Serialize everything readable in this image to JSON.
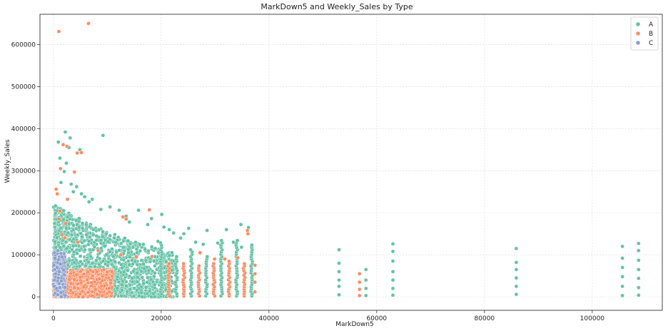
{
  "chart_data": {
    "type": "scatter",
    "title": "MarkDown5 and Weekly_Sales by Type",
    "xlabel": "MarkDown5",
    "ylabel": "Weekly_Sales",
    "xlim": [
      -2500,
      113000
    ],
    "ylim": [
      -32000,
      672000
    ],
    "xticks": [
      0,
      20000,
      40000,
      60000,
      80000,
      100000
    ],
    "xtick_labels": [
      "0",
      "20000",
      "40000",
      "60000",
      "80000",
      "100000"
    ],
    "yticks": [
      0,
      100000,
      200000,
      300000,
      400000,
      500000,
      600000
    ],
    "ytick_labels": [
      "0",
      "100000",
      "200000",
      "300000",
      "400000",
      "500000",
      "600000"
    ],
    "grid": true,
    "legend": {
      "placement": "top-right",
      "entries": [
        "A",
        "B",
        "C"
      ]
    },
    "colors": {
      "A": "#66c2a5",
      "B": "#fc8d62",
      "C": "#8da0cb"
    },
    "series": [
      {
        "name": "A",
        "color": "#66c2a5",
        "points": [
          [
            900,
            368000
          ],
          [
            2200,
            392000
          ],
          [
            3100,
            378000
          ],
          [
            9200,
            384000
          ],
          [
            2900,
            355000
          ],
          [
            4900,
            350000
          ],
          [
            1200,
            330000
          ],
          [
            2400,
            318000
          ],
          [
            2000,
            298000
          ],
          [
            1400,
            272000
          ],
          [
            3300,
            268000
          ],
          [
            4300,
            262000
          ],
          [
            3700,
            250000
          ],
          [
            5200,
            245000
          ],
          [
            5800,
            238000
          ],
          [
            7200,
            232000
          ],
          [
            6600,
            226000
          ],
          [
            10500,
            214000
          ],
          [
            8800,
            208000
          ],
          [
            12200,
            206000
          ],
          [
            15800,
            206000
          ],
          [
            20100,
            196000
          ],
          [
            18200,
            186000
          ],
          [
            13500,
            192000
          ],
          [
            14100,
            178000
          ],
          [
            17500,
            172000
          ],
          [
            20500,
            166000
          ],
          [
            21500,
            160000
          ],
          [
            25100,
            163000
          ],
          [
            22300,
            152000
          ],
          [
            24200,
            150000
          ],
          [
            28500,
            158000
          ],
          [
            32100,
            160000
          ],
          [
            34800,
            172000
          ],
          [
            36200,
            165000
          ],
          [
            23600,
            140000
          ],
          [
            26400,
            130000
          ],
          [
            27800,
            125000
          ],
          [
            30500,
            128000
          ],
          [
            33400,
            130000
          ],
          [
            34900,
            118000
          ],
          [
            18900,
            115000
          ],
          [
            16700,
            125000
          ],
          [
            19400,
            132000
          ],
          [
            11300,
            140000
          ],
          [
            9800,
            150000
          ],
          [
            7400,
            160000
          ],
          [
            6100,
            172000
          ],
          [
            4200,
            182000
          ],
          [
            2600,
            190000
          ],
          [
            1900,
            205000
          ],
          [
            53000,
            112000
          ],
          [
            53000,
            80000
          ],
          [
            53000,
            60000
          ],
          [
            53000,
            40000
          ],
          [
            53000,
            25000
          ],
          [
            53000,
            5000
          ],
          [
            58000,
            65000
          ],
          [
            58000,
            40000
          ],
          [
            58000,
            20000
          ],
          [
            58000,
            3000
          ],
          [
            63000,
            126000
          ],
          [
            63000,
            108000
          ],
          [
            63000,
            85000
          ],
          [
            63000,
            60000
          ],
          [
            63000,
            40000
          ],
          [
            63000,
            20000
          ],
          [
            63000,
            4000
          ],
          [
            85900,
            115000
          ],
          [
            85900,
            82000
          ],
          [
            85900,
            65000
          ],
          [
            85900,
            45000
          ],
          [
            85900,
            25000
          ],
          [
            85900,
            6000
          ],
          [
            105600,
            120000
          ],
          [
            105600,
            92000
          ],
          [
            105600,
            70000
          ],
          [
            105600,
            48000
          ],
          [
            105600,
            25000
          ],
          [
            105600,
            3000
          ],
          [
            108600,
            127000
          ],
          [
            108600,
            110000
          ],
          [
            108600,
            87000
          ],
          [
            108600,
            65000
          ],
          [
            108600,
            44000
          ],
          [
            108600,
            22000
          ],
          [
            108600,
            4000
          ]
        ]
      },
      {
        "name": "B",
        "color": "#fc8d62",
        "points": [
          [
            1000,
            631000
          ],
          [
            6500,
            650000
          ],
          [
            1800,
            362000
          ],
          [
            2500,
            358000
          ],
          [
            4400,
            342000
          ],
          [
            5200,
            343000
          ],
          [
            1300,
            305000
          ],
          [
            3900,
            297000
          ],
          [
            500,
            256000
          ],
          [
            700,
            245000
          ],
          [
            2600,
            232000
          ],
          [
            1200,
            204000
          ],
          [
            17800,
            207000
          ],
          [
            12900,
            190000
          ],
          [
            13500,
            185000
          ],
          [
            1000,
            185000
          ],
          [
            2300,
            175000
          ],
          [
            1600,
            148000
          ],
          [
            36000,
            158000
          ],
          [
            36100,
            150000
          ],
          [
            27200,
            105000
          ],
          [
            29900,
            90000
          ],
          [
            31800,
            90000
          ],
          [
            34200,
            93000
          ],
          [
            37400,
            75000
          ],
          [
            37400,
            55000
          ],
          [
            37400,
            35000
          ],
          [
            37400,
            12000
          ],
          [
            56800,
            55000
          ],
          [
            56800,
            35000
          ],
          [
            56800,
            18000
          ],
          [
            56800,
            3000
          ],
          [
            2100,
            140000
          ],
          [
            4500,
            130000
          ],
          [
            8300,
            110000
          ],
          [
            12500,
            100000
          ],
          [
            15400,
            95000
          ],
          [
            18300,
            96000
          ]
        ]
      },
      {
        "name": "C",
        "color": "#8da0cb",
        "points": [
          [
            200,
            105000
          ],
          [
            800,
            110000
          ],
          [
            1400,
            103000
          ],
          [
            300,
            92000
          ],
          [
            900,
            88000
          ],
          [
            1600,
            95000
          ],
          [
            100,
            75000
          ],
          [
            700,
            70000
          ],
          [
            1300,
            78000
          ],
          [
            400,
            55000
          ],
          [
            1100,
            60000
          ],
          [
            200,
            40000
          ],
          [
            900,
            45000
          ],
          [
            1500,
            38000
          ],
          [
            100,
            25000
          ],
          [
            600,
            20000
          ],
          [
            1200,
            22000
          ],
          [
            300,
            8000
          ],
          [
            800,
            5000
          ],
          [
            1400,
            10000
          ]
        ]
      }
    ],
    "dense_bands": [
      {
        "series": "A",
        "x_range": [
          0,
          38000
        ],
        "y_range": [
          0,
          200000
        ],
        "density": "high"
      },
      {
        "series": "B",
        "x_range": [
          0,
          38000
        ],
        "y_range": [
          0,
          85000
        ],
        "density": "high"
      },
      {
        "series": "C",
        "x_range": [
          0,
          2500
        ],
        "y_range": [
          0,
          110000
        ],
        "density": "high"
      }
    ],
    "column_stacks_x": [
      20000,
      21400,
      22800,
      24200,
      25600,
      27000,
      28400,
      29800,
      31200,
      32600,
      34000,
      35400,
      36800
    ]
  }
}
